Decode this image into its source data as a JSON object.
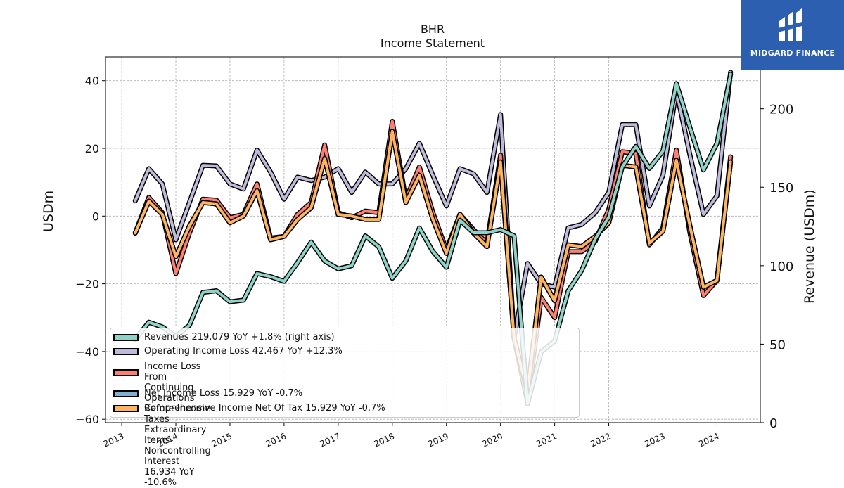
{
  "title": {
    "line1": "BHR",
    "line2": "Income Statement"
  },
  "logo": {
    "text": "MIDGARD FINANCE"
  },
  "chart_data": {
    "type": "line",
    "title": "BHR\nIncome Statement",
    "ylabel_left": "USDm",
    "ylabel_right": "Revenue (USDm)",
    "ylim_left": [
      -61,
      47
    ],
    "ylim_right": [
      0,
      233
    ],
    "yticks_left": [
      -60,
      -40,
      -20,
      0,
      20,
      40
    ],
    "yticks_right": [
      0,
      50,
      100,
      150,
      200
    ],
    "xlim": [
      2012.7,
      2024.8
    ],
    "xticks": [
      2013,
      2014,
      2015,
      2016,
      2017,
      2018,
      2019,
      2020,
      2021,
      2022,
      2023,
      2024
    ],
    "grid": true,
    "legend_position": "lower-left",
    "x": [
      2013.25,
      2013.5,
      2013.75,
      2014.0,
      2014.25,
      2014.5,
      2014.75,
      2015.0,
      2015.25,
      2015.5,
      2015.75,
      2016.0,
      2016.25,
      2016.5,
      2016.75,
      2017.0,
      2017.25,
      2017.5,
      2017.75,
      2018.0,
      2018.25,
      2018.5,
      2018.75,
      2019.0,
      2019.25,
      2019.5,
      2019.75,
      2020.0,
      2020.25,
      2020.5,
      2020.75,
      2021.0,
      2021.25,
      2021.5,
      2021.75,
      2022.0,
      2022.25,
      2022.5,
      2022.75,
      2023.0,
      2023.25,
      2023.5,
      2023.75,
      2024.0,
      2024.25
    ],
    "series": [
      {
        "name": "Revenues  219.079 YoY +1.8% (right axis)",
        "axis": "right",
        "color": "#8dd3c7",
        "values": [
          53,
          64,
          61,
          55,
          62,
          83,
          84,
          77,
          78,
          95,
          93,
          90,
          102,
          115,
          103,
          98,
          100,
          119,
          112,
          92,
          103,
          124,
          109,
          99,
          129,
          121,
          121,
          123,
          119,
          12,
          45,
          52,
          84,
          97,
          117,
          131,
          163,
          176,
          162,
          173,
          216,
          188,
          161,
          178,
          222
        ]
      },
      {
        "name": "Operating Income Loss  42.467 YoY +12.3%",
        "axis": "left",
        "color": "#bebada",
        "values": [
          4.5,
          14,
          9.5,
          -7,
          4,
          15,
          14.8,
          9.5,
          8,
          19.5,
          13,
          5,
          11.5,
          10.5,
          11.5,
          14,
          7,
          13,
          9.5,
          9.5,
          14,
          21.5,
          12,
          3,
          14,
          12.5,
          7,
          30,
          -36,
          -14,
          -20,
          -21,
          -3.5,
          -2.5,
          1,
          7,
          27,
          27,
          3,
          12,
          37,
          18,
          0.5,
          6,
          42.5
        ]
      },
      {
        "name": "Income Loss From Continuing Operations\nBefore Income Taxes Extraordinary Items Noncontrolling Interest  16.934 YoY -10.6%",
        "axis": "left",
        "color": "#fb8072",
        "values": [
          -5,
          5.5,
          1,
          -17,
          -5,
          5,
          4.7,
          -0.5,
          0.5,
          9.5,
          -6.5,
          -6,
          0.5,
          4,
          21,
          1,
          -0.5,
          1.5,
          1,
          28,
          5,
          14.5,
          1,
          -10,
          0.5,
          -4,
          -8,
          18,
          -36,
          -55,
          -24,
          -30,
          -10.5,
          -10.5,
          -7.5,
          2,
          19,
          18.5,
          -8.5,
          -3.5,
          19.5,
          -5,
          -23.5,
          -19,
          17.5
        ]
      },
      {
        "name": "Net Income Loss  15.929 YoY -0.7%",
        "axis": "left",
        "color": "#80b1d3",
        "values": [
          -5,
          4.4,
          0.5,
          -12,
          -3,
          4,
          3.6,
          -2,
          0,
          7.5,
          -7,
          -6,
          -1,
          2.5,
          17,
          0.5,
          0,
          -1,
          -1,
          25,
          4,
          12,
          -1,
          -11,
          0.5,
          -5,
          -9,
          16,
          -36,
          -52,
          -18,
          -25,
          -8.5,
          -9,
          -6,
          -2,
          15,
          14.5,
          -8,
          -4.5,
          16.5,
          -3,
          -21,
          -19,
          16
        ]
      },
      {
        "name": "Comprehensive Income Net Of Tax  15.929 YoY -0.7%",
        "axis": "left",
        "color": "#fdb462",
        "values": [
          -5,
          4.4,
          0.5,
          -12,
          -3,
          4,
          3.6,
          -2,
          0,
          7.5,
          -7,
          -6,
          -1,
          2.5,
          17,
          0.5,
          0,
          -1,
          -1,
          25,
          4,
          12,
          -1,
          -11,
          0.5,
          -5,
          -9,
          16,
          -36,
          -52,
          -18,
          -25,
          -8.5,
          -9,
          -6,
          -2,
          15,
          14.5,
          -8,
          -4.5,
          16.5,
          -3,
          -21,
          -19,
          16
        ]
      }
    ]
  }
}
